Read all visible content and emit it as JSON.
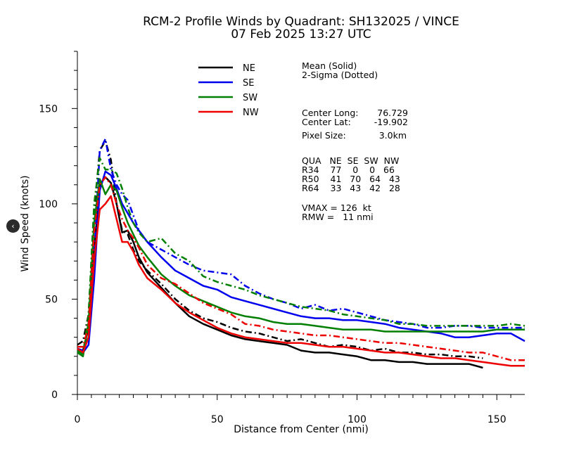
{
  "chart_data": {
    "type": "line",
    "title": "RCM-2 Profile Winds by Quadrant: SH132025 / VINCE",
    "subtitle": "07 Feb 2025 13:27 UTC",
    "xlabel": "Distance from Center (nmi)",
    "ylabel": "Wind Speed (knots)",
    "xlim": [
      0,
      160
    ],
    "ylim": [
      0,
      180
    ],
    "xticks": [
      0,
      50,
      100,
      150
    ],
    "yticks": [
      0,
      50,
      100,
      150
    ],
    "grid": false,
    "legend_position": "top-center",
    "annotation": {
      "mean_label": "Mean (Solid)",
      "sigma_label": "2-Sigma (Dotted)",
      "center_long_label": "Center Long:",
      "center_long_value": "76.729",
      "center_lat_label": "Center Lat:",
      "center_lat_value": "-19.902",
      "pixel_size_label": "Pixel Size:",
      "pixel_size_value": "3.0km",
      "radii_header": "QUA   NE  SE  SW  NW",
      "r34": "R34    77    0    0   66",
      "r50": "R50    41   70   64   43",
      "r64": "R64    33   43   42   28",
      "vmax": "VMAX = 126  kt",
      "rmw": "RMW =   11 nmi"
    },
    "series": [
      {
        "name": "NE",
        "color": "#000000",
        "mean_x": [
          0,
          2,
          4,
          6,
          8,
          10,
          12,
          14,
          16,
          18,
          20,
          22,
          25,
          30,
          35,
          40,
          45,
          50,
          55,
          60,
          65,
          70,
          75,
          80,
          85,
          90,
          95,
          100,
          105,
          110,
          115,
          120,
          125,
          130,
          135,
          140,
          145
        ],
        "mean_y": [
          24,
          23,
          35,
          75,
          110,
          114,
          111,
          100,
          85,
          86,
          80,
          72,
          64,
          56,
          48,
          41,
          37,
          34,
          31,
          29,
          28,
          27,
          26,
          23,
          22,
          22,
          21,
          20,
          18,
          18,
          17,
          17,
          16,
          16,
          16,
          16,
          14
        ],
        "sigma_x": [
          0,
          2,
          4,
          6,
          8,
          10,
          12,
          14,
          16,
          18,
          20,
          22,
          25,
          30,
          35,
          40,
          45,
          50,
          55,
          60,
          65,
          70,
          75,
          80,
          85,
          90,
          95,
          100,
          105,
          110,
          115,
          120,
          125,
          130,
          135,
          140,
          145
        ],
        "sigma_y": [
          26,
          28,
          42,
          95,
          128,
          133,
          123,
          100,
          86,
          84,
          76,
          70,
          65,
          58,
          50,
          44,
          40,
          38,
          35,
          33,
          32,
          30,
          28,
          29,
          27,
          25,
          26,
          25,
          23,
          24,
          22,
          22,
          21,
          21,
          20,
          20,
          19
        ]
      },
      {
        "name": "SE",
        "color": "#0000ee",
        "mean_x": [
          0,
          2,
          4,
          6,
          8,
          10,
          12,
          14,
          16,
          18,
          20,
          22,
          25,
          30,
          35,
          40,
          45,
          50,
          55,
          60,
          65,
          70,
          75,
          80,
          85,
          90,
          95,
          100,
          105,
          110,
          115,
          120,
          125,
          130,
          135,
          140,
          145,
          150,
          155,
          160
        ],
        "mean_y": [
          23,
          22,
          26,
          60,
          107,
          117,
          115,
          108,
          100,
          95,
          90,
          86,
          80,
          72,
          65,
          61,
          57,
          55,
          51,
          49,
          47,
          45,
          43,
          41,
          40,
          40,
          39,
          39,
          38,
          37,
          35,
          34,
          33,
          32,
          30,
          30,
          31,
          32,
          32,
          28
        ],
        "sigma_x": [
          0,
          2,
          4,
          6,
          8,
          10,
          12,
          14,
          16,
          18,
          20,
          22,
          25,
          30,
          35,
          40,
          45,
          50,
          55,
          60,
          65,
          70,
          75,
          80,
          85,
          90,
          95,
          100,
          105,
          110,
          115,
          120,
          125,
          130,
          135,
          140,
          145,
          150,
          155,
          160
        ],
        "sigma_y": [
          24,
          23,
          30,
          72,
          128,
          134,
          118,
          110,
          105,
          102,
          94,
          86,
          80,
          76,
          72,
          68,
          65,
          64,
          63,
          57,
          53,
          50,
          48,
          45,
          47,
          44,
          45,
          43,
          41,
          39,
          38,
          37,
          35,
          35,
          36,
          36,
          35,
          35,
          35,
          35
        ]
      },
      {
        "name": "SW",
        "color": "#007f00",
        "mean_x": [
          0,
          2,
          4,
          6,
          8,
          10,
          12,
          14,
          16,
          18,
          20,
          22,
          25,
          30,
          35,
          40,
          45,
          50,
          55,
          60,
          65,
          70,
          75,
          80,
          85,
          90,
          95,
          100,
          105,
          110,
          115,
          120,
          125,
          130,
          135,
          140,
          145,
          150,
          155,
          160
        ],
        "mean_y": [
          22,
          20,
          38,
          90,
          113,
          105,
          110,
          107,
          98,
          90,
          84,
          78,
          72,
          63,
          57,
          52,
          49,
          46,
          43,
          41,
          40,
          38,
          37,
          37,
          36,
          35,
          34,
          34,
          34,
          33,
          33,
          33,
          33,
          33,
          33,
          33,
          33,
          34,
          34,
          34
        ],
        "sigma_x": [
          0,
          2,
          4,
          6,
          8,
          10,
          12,
          14,
          16,
          18,
          20,
          22,
          25,
          30,
          35,
          40,
          45,
          50,
          55,
          60,
          65,
          70,
          75,
          80,
          85,
          90,
          95,
          100,
          105,
          110,
          115,
          120,
          125,
          130,
          135,
          140,
          145,
          150,
          155,
          160
        ],
        "sigma_y": [
          23,
          21,
          42,
          100,
          124,
          118,
          118,
          116,
          108,
          98,
          90,
          85,
          80,
          82,
          74,
          70,
          62,
          59,
          57,
          55,
          52,
          50,
          48,
          46,
          45,
          44,
          42,
          41,
          40,
          39,
          37,
          37,
          36,
          36,
          36,
          36,
          36,
          36,
          37,
          36
        ]
      },
      {
        "name": "NW",
        "color": "#ee0000",
        "mean_x": [
          0,
          2,
          4,
          6,
          8,
          10,
          12,
          14,
          16,
          18,
          20,
          22,
          25,
          30,
          35,
          40,
          45,
          50,
          55,
          60,
          65,
          70,
          75,
          80,
          85,
          90,
          95,
          100,
          105,
          110,
          115,
          120,
          125,
          130,
          135,
          140,
          145,
          150,
          155,
          160
        ],
        "mean_y": [
          24,
          22,
          30,
          70,
          97,
          100,
          104,
          92,
          80,
          80,
          75,
          68,
          61,
          55,
          48,
          43,
          39,
          35,
          32,
          30,
          29,
          28,
          27,
          27,
          26,
          25,
          25,
          24,
          23,
          22,
          22,
          21,
          20,
          19,
          19,
          18,
          17,
          16,
          15,
          15
        ],
        "sigma_x": [
          0,
          2,
          4,
          6,
          8,
          10,
          12,
          14,
          16,
          18,
          20,
          22,
          25,
          30,
          35,
          40,
          45,
          50,
          55,
          60,
          65,
          70,
          75,
          80,
          85,
          90,
          95,
          100,
          105,
          110,
          115,
          120,
          125,
          130,
          135,
          140,
          145,
          150,
          155,
          160
        ],
        "sigma_y": [
          25,
          25,
          36,
          85,
          110,
          114,
          110,
          100,
          92,
          86,
          82,
          77,
          68,
          61,
          58,
          53,
          48,
          45,
          42,
          37,
          36,
          34,
          33,
          32,
          31,
          31,
          30,
          29,
          28,
          27,
          27,
          26,
          25,
          24,
          23,
          22,
          22,
          20,
          18,
          18
        ]
      }
    ]
  },
  "ui": {
    "nav_glyph": "‹"
  }
}
